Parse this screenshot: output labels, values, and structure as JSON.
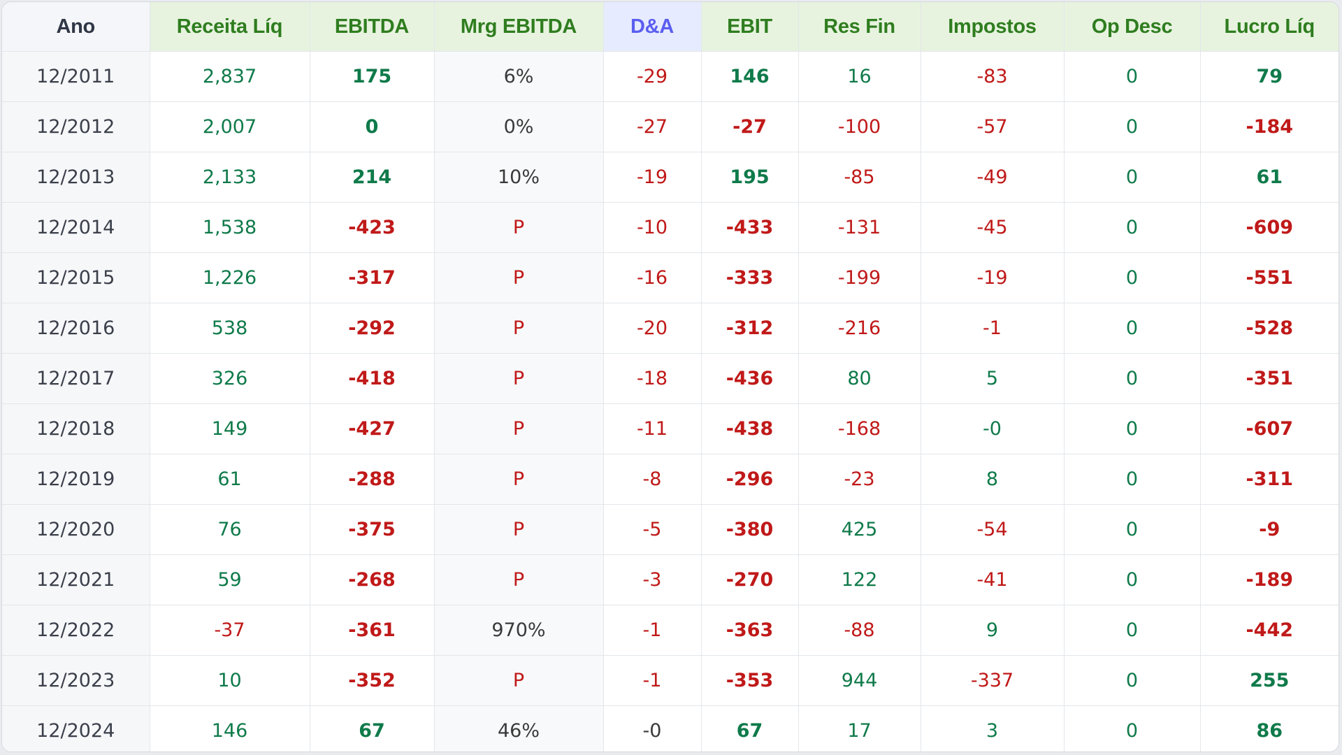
{
  "colors": {
    "positive": "#0f7a4a",
    "negative": "#c01919",
    "neutral": "#3a3a3a",
    "header_green": "#2f7d1f",
    "header_blue": "#5a5ef0"
  },
  "headers": [
    "Ano",
    "Receita Líq",
    "EBITDA",
    "Mrg EBITDA",
    "D&A",
    "EBIT",
    "Res Fin",
    "Impostos",
    "Op Desc",
    "Lucro Líq"
  ],
  "rows": [
    [
      "12/2011",
      "2,837",
      "175",
      "6%",
      "-29",
      "146",
      "16",
      "-83",
      "0",
      "79"
    ],
    [
      "12/2012",
      "2,007",
      "0",
      "0%",
      "-27",
      "-27",
      "-100",
      "-57",
      "0",
      "-184"
    ],
    [
      "12/2013",
      "2,133",
      "214",
      "10%",
      "-19",
      "195",
      "-85",
      "-49",
      "0",
      "61"
    ],
    [
      "12/2014",
      "1,538",
      "-423",
      "P",
      "-10",
      "-433",
      "-131",
      "-45",
      "0",
      "-609"
    ],
    [
      "12/2015",
      "1,226",
      "-317",
      "P",
      "-16",
      "-333",
      "-199",
      "-19",
      "0",
      "-551"
    ],
    [
      "12/2016",
      "538",
      "-292",
      "P",
      "-20",
      "-312",
      "-216",
      "-1",
      "0",
      "-528"
    ],
    [
      "12/2017",
      "326",
      "-418",
      "P",
      "-18",
      "-436",
      "80",
      "5",
      "0",
      "-351"
    ],
    [
      "12/2018",
      "149",
      "-427",
      "P",
      "-11",
      "-438",
      "-168",
      "-0",
      "0",
      "-607"
    ],
    [
      "12/2019",
      "61",
      "-288",
      "P",
      "-8",
      "-296",
      "-23",
      "8",
      "0",
      "-311"
    ],
    [
      "12/2020",
      "76",
      "-375",
      "P",
      "-5",
      "-380",
      "425",
      "-54",
      "0",
      "-9"
    ],
    [
      "12/2021",
      "59",
      "-268",
      "P",
      "-3",
      "-270",
      "122",
      "-41",
      "0",
      "-189"
    ],
    [
      "12/2022",
      "-37",
      "-361",
      "970%",
      "-1",
      "-363",
      "-88",
      "9",
      "0",
      "-442"
    ],
    [
      "12/2023",
      "10",
      "-352",
      "P",
      "-1",
      "-353",
      "944",
      "-337",
      "0",
      "255"
    ],
    [
      "12/2024",
      "146",
      "67",
      "46%",
      "-0",
      "67",
      "17",
      "3",
      "0",
      "86"
    ]
  ]
}
